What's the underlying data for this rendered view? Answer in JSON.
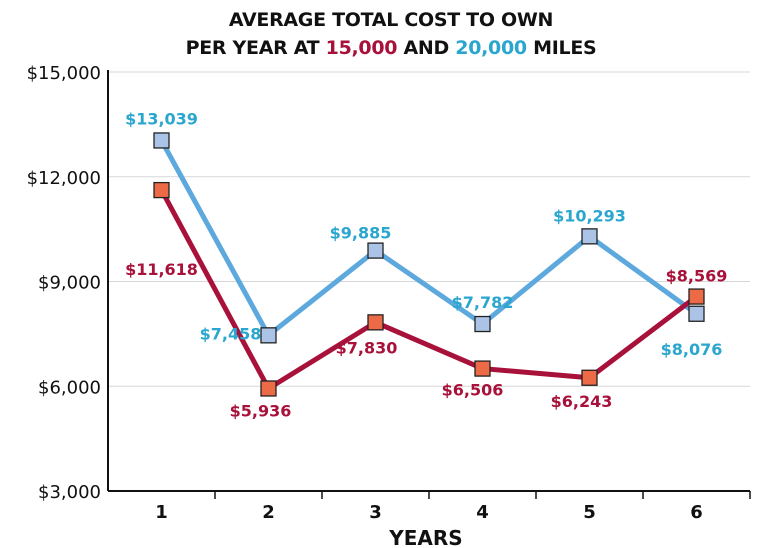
{
  "chart_data": {
    "type": "line",
    "title": {
      "line1": "AVERAGE TOTAL COST TO OWN",
      "line2_prefix": "PER YEAR AT ",
      "line2_red": "15,000",
      "line2_mid": " AND ",
      "line2_blue": "20,000",
      "line2_suffix": " MILES"
    },
    "xlabel": "YEARS",
    "ylabel": "",
    "categories": [
      "1",
      "2",
      "3",
      "4",
      "5",
      "6"
    ],
    "ylim": [
      3000,
      15000
    ],
    "yticks": [
      3000,
      6000,
      9000,
      12000,
      15000
    ],
    "ytick_labels": [
      "$3,000",
      "$6,000",
      "$9,000",
      "$12,000",
      "$15,000"
    ],
    "grid": true,
    "series": [
      {
        "color": "#5da9dd",
        "marker_fill": "#aac3e6",
        "label_color": "#2aa6cf",
        "values": [
          13039,
          7458,
          9885,
          7782,
          10293,
          8076
        ],
        "data_labels": [
          "$13,039",
          "$7,458",
          "$9,885",
          "$7,782",
          "$10,293",
          "$8,076"
        ]
      },
      {
        "color": "#a8123a",
        "marker_fill": "#ec6a45",
        "label_color": "#a8123a",
        "values": [
          11618,
          5936,
          7830,
          6506,
          6243,
          8569
        ],
        "data_labels": [
          "$11,618",
          "$5,936",
          "$7,830",
          "$6,506",
          "$6,243",
          "$8,569"
        ]
      }
    ]
  }
}
